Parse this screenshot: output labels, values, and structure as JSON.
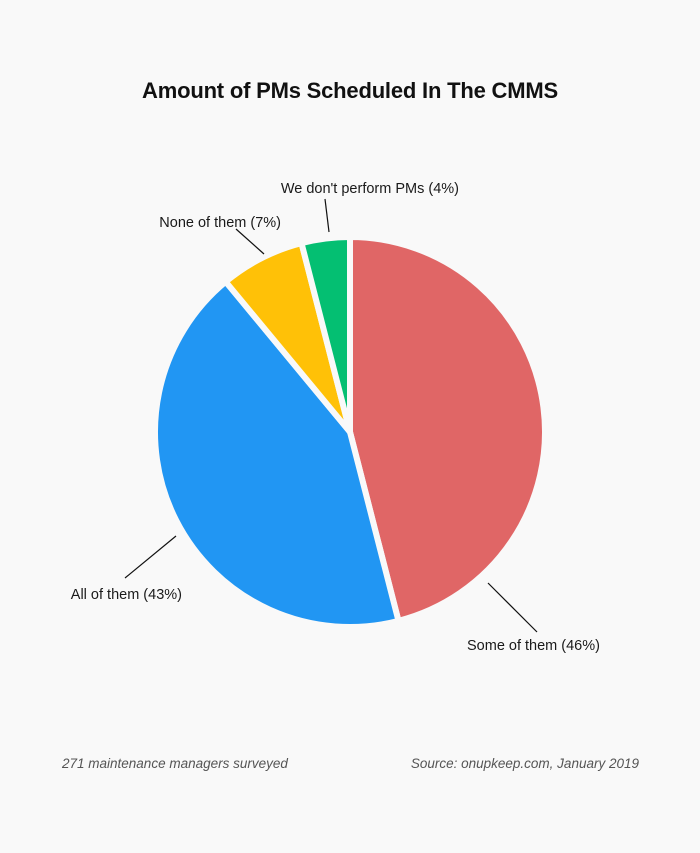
{
  "chart_data": {
    "type": "pie",
    "title": "Amount of PMs Scheduled In The CMMS",
    "slices": [
      {
        "label": "Some of them (46%)",
        "value": 46,
        "color": "#e06666"
      },
      {
        "label": "All of them (43%)",
        "value": 43,
        "color": "#2196f3"
      },
      {
        "label": "None of them (7%)",
        "value": 7,
        "color": "#ffc107"
      },
      {
        "label": "We don't perform PMs (4%)",
        "value": 4,
        "color": "#04bf72"
      }
    ]
  },
  "footer": {
    "left": "271 maintenance managers surveyed",
    "right": "Source: onupkeep.com, January 2019"
  }
}
